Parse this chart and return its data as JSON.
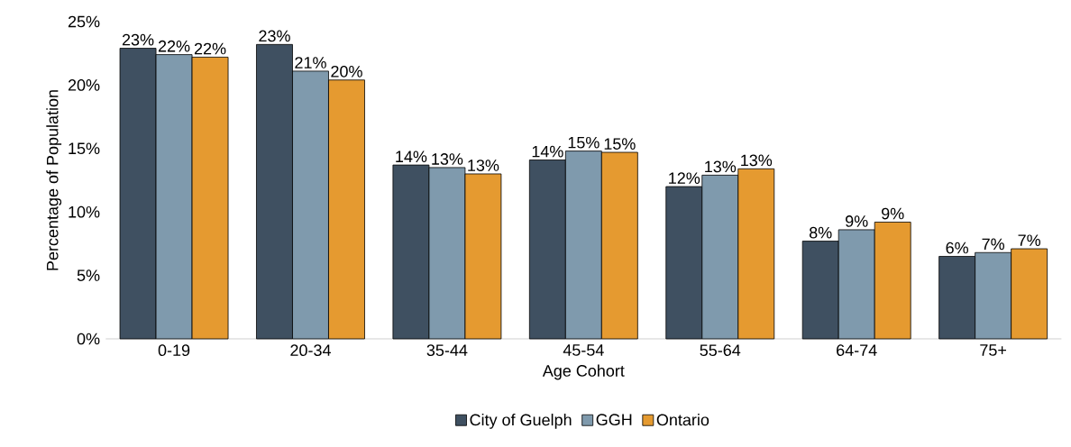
{
  "chart_data": {
    "type": "bar",
    "xlabel": "Age Cohort",
    "ylabel": "Percentage of Population",
    "categories": [
      "0-19",
      "20-34",
      "35-44",
      "45-54",
      "55-64",
      "64-74",
      "75+"
    ],
    "series": [
      {
        "name": "City of Guelph",
        "color": "#3f5061",
        "values": [
          22.9,
          23.2,
          13.7,
          14.1,
          12.0,
          7.7,
          6.5
        ],
        "value_labels": [
          "23%",
          "23%",
          "14%",
          "14%",
          "12%",
          "8%",
          "6%"
        ]
      },
      {
        "name": "GGH",
        "color": "#7f9aad",
        "values": [
          22.4,
          21.1,
          13.5,
          14.8,
          12.9,
          8.6,
          6.8
        ],
        "value_labels": [
          "22%",
          "21%",
          "13%",
          "15%",
          "13%",
          "9%",
          "7%"
        ]
      },
      {
        "name": "Ontario",
        "color": "#e59a30",
        "values": [
          22.2,
          20.4,
          13.0,
          14.7,
          13.4,
          9.2,
          7.1
        ],
        "value_labels": [
          "22%",
          "20%",
          "13%",
          "15%",
          "13%",
          "9%",
          "7%"
        ]
      }
    ],
    "ylim": [
      0,
      25
    ],
    "yticks": [
      {
        "value": 0,
        "label": "0%"
      },
      {
        "value": 5,
        "label": "5%"
      },
      {
        "value": 10,
        "label": "10%"
      },
      {
        "value": 15,
        "label": "15%"
      },
      {
        "value": 20,
        "label": "20%"
      },
      {
        "value": 25,
        "label": "25%"
      }
    ],
    "grid": false,
    "legend": "bottom"
  }
}
